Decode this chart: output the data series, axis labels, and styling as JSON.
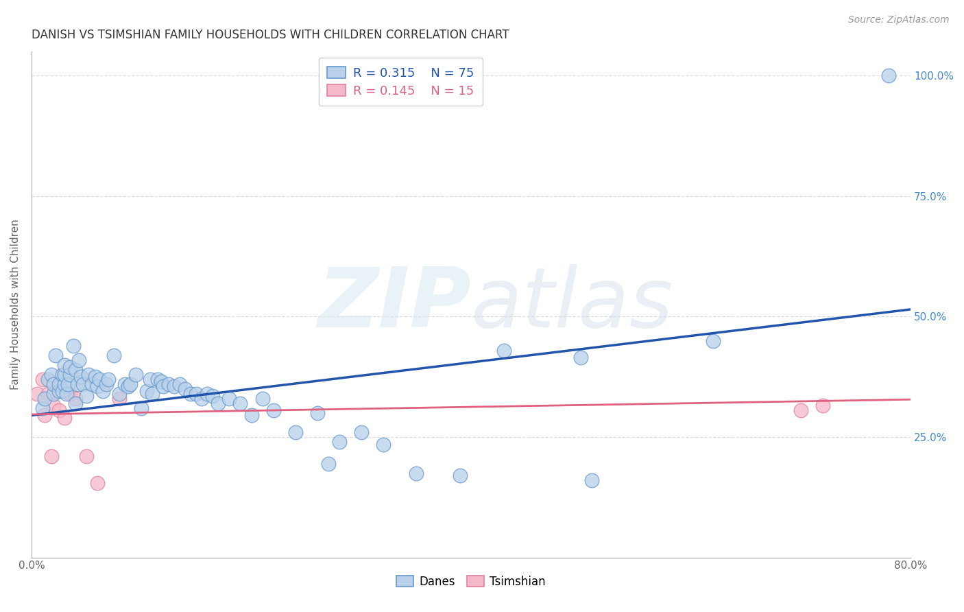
{
  "title": "DANISH VS TSIMSHIAN FAMILY HOUSEHOLDS WITH CHILDREN CORRELATION CHART",
  "source": "Source: ZipAtlas.com",
  "ylabel": "Family Households with Children",
  "xlim": [
    0.0,
    0.8
  ],
  "ylim": [
    0.0,
    1.05
  ],
  "xticks": [
    0.0,
    0.1,
    0.2,
    0.3,
    0.4,
    0.5,
    0.6,
    0.7,
    0.8
  ],
  "xticklabels": [
    "0.0%",
    "",
    "",
    "",
    "",
    "",
    "",
    "",
    "80.0%"
  ],
  "yticks": [
    0.0,
    0.25,
    0.5,
    0.75,
    1.0
  ],
  "yticklabels": [
    "",
    "25.0%",
    "50.0%",
    "75.0%",
    "100.0%"
  ],
  "danes_R": "0.315",
  "danes_N": "75",
  "tsimshian_R": "0.145",
  "tsimshian_N": "15",
  "danes_color": "#b8d0ea",
  "danes_edge_color": "#6699cc",
  "danes_line_color": "#2255aa",
  "tsimshian_color": "#f5b8c8",
  "tsimshian_edge_color": "#e080a0",
  "tsimshian_line_color": "#e06080",
  "danes_x": [
    0.01,
    0.012,
    0.015,
    0.018,
    0.02,
    0.02,
    0.022,
    0.025,
    0.025,
    0.028,
    0.028,
    0.03,
    0.03,
    0.03,
    0.032,
    0.033,
    0.035,
    0.035,
    0.038,
    0.04,
    0.04,
    0.042,
    0.043,
    0.045,
    0.047,
    0.05,
    0.052,
    0.055,
    0.058,
    0.06,
    0.062,
    0.065,
    0.068,
    0.07,
    0.075,
    0.08,
    0.085,
    0.088,
    0.09,
    0.095,
    0.1,
    0.105,
    0.108,
    0.11,
    0.115,
    0.118,
    0.12,
    0.125,
    0.13,
    0.135,
    0.14,
    0.145,
    0.15,
    0.155,
    0.16,
    0.165,
    0.17,
    0.18,
    0.19,
    0.2,
    0.21,
    0.22,
    0.24,
    0.26,
    0.27,
    0.28,
    0.3,
    0.32,
    0.35,
    0.39,
    0.43,
    0.5,
    0.51,
    0.62,
    0.78
  ],
  "danes_y": [
    0.31,
    0.33,
    0.37,
    0.38,
    0.34,
    0.36,
    0.42,
    0.345,
    0.36,
    0.345,
    0.38,
    0.36,
    0.38,
    0.4,
    0.34,
    0.36,
    0.38,
    0.395,
    0.44,
    0.32,
    0.39,
    0.36,
    0.41,
    0.375,
    0.36,
    0.335,
    0.38,
    0.36,
    0.375,
    0.355,
    0.37,
    0.345,
    0.36,
    0.37,
    0.42,
    0.34,
    0.36,
    0.355,
    0.36,
    0.38,
    0.31,
    0.345,
    0.37,
    0.34,
    0.37,
    0.365,
    0.355,
    0.36,
    0.355,
    0.36,
    0.35,
    0.34,
    0.34,
    0.33,
    0.34,
    0.335,
    0.32,
    0.33,
    0.32,
    0.295,
    0.33,
    0.305,
    0.26,
    0.3,
    0.195,
    0.24,
    0.26,
    0.235,
    0.175,
    0.17,
    0.43,
    0.415,
    0.16,
    0.45,
    1.0
  ],
  "tsimshian_x": [
    0.005,
    0.01,
    0.012,
    0.015,
    0.018,
    0.02,
    0.025,
    0.03,
    0.035,
    0.04,
    0.05,
    0.06,
    0.08,
    0.7,
    0.72
  ],
  "tsimshian_y": [
    0.34,
    0.37,
    0.295,
    0.34,
    0.21,
    0.315,
    0.305,
    0.29,
    0.34,
    0.33,
    0.21,
    0.155,
    0.33,
    0.305,
    0.315
  ],
  "danes_trend_x": [
    0.0,
    0.8
  ],
  "danes_trend_y": [
    0.295,
    0.515
  ],
  "tsimshian_trend_x": [
    0.0,
    0.8
  ],
  "tsimshian_trend_y": [
    0.297,
    0.328
  ],
  "watermark_zip": "ZIP",
  "watermark_atlas": "atlas",
  "background_color": "#ffffff",
  "grid_color": "#dddddd",
  "title_fontsize": 12,
  "axis_label_fontsize": 11,
  "tick_fontsize": 11,
  "legend_fontsize": 13
}
